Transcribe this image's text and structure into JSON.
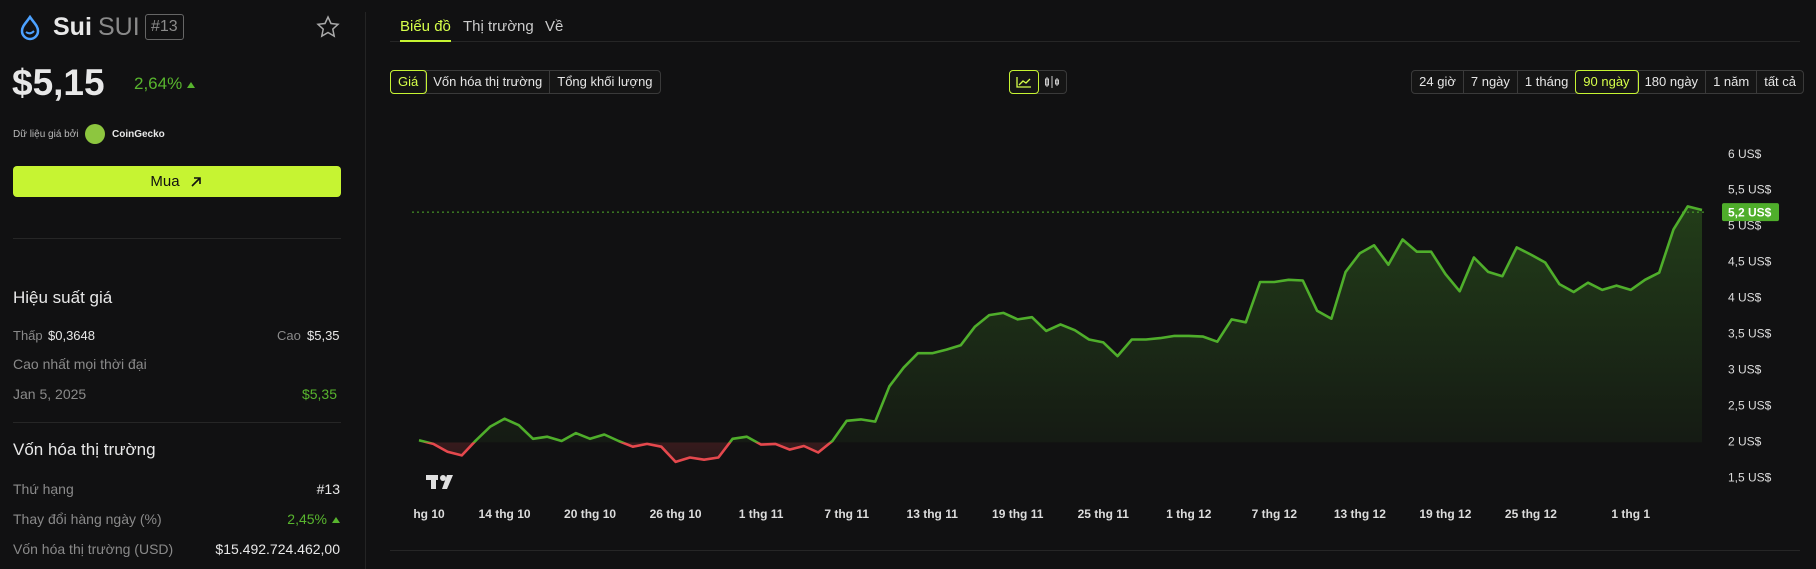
{
  "header": {
    "name": "Sui",
    "symbol": "SUI",
    "rank": "#13"
  },
  "price": {
    "value": "$5,15",
    "change": "2,64%"
  },
  "source": {
    "label": "Dữ liệu giá bởi",
    "provider": "CoinGecko"
  },
  "buy_button": "Mua",
  "performance": {
    "title": "Hiệu suất giá",
    "low_label": "Thấp",
    "low": "$0,3648",
    "high_label": "Cao",
    "high": "$5,35",
    "ath_label": "Cao nhất mọi thời đại",
    "ath_date": "Jan 5, 2025",
    "ath": "$5,35"
  },
  "market_cap": {
    "title": "Vốn hóa thị trường",
    "rows": [
      [
        "Thứ hạng",
        "#13"
      ],
      [
        "Thay đổi hàng ngày (%)",
        "2,45%"
      ],
      [
        "Vốn hóa thị trường (USD)",
        "$15.492.724.462,00"
      ]
    ]
  },
  "tabs": [
    "Biểu đồ",
    "Thị trường",
    "Về"
  ],
  "metrics": [
    "Giá",
    "Vốn hóa thị trường",
    "Tổng khối lượng"
  ],
  "ranges": [
    "24 giờ",
    "7 ngày",
    "1 tháng",
    "90 ngày",
    "180 ngày",
    "1 năm",
    "tất cả"
  ],
  "chart_data": {
    "type": "line",
    "color": "#4fae2b",
    "down_color": "#e5484d",
    "baseline": 2,
    "values": [
      2.03,
      1.98,
      1.87,
      1.82,
      2.03,
      2.22,
      2.33,
      2.24,
      2.05,
      2.08,
      2.02,
      2.13,
      2.05,
      2.11,
      2.02,
      1.94,
      1.98,
      1.94,
      1.73,
      1.79,
      1.76,
      1.79,
      2.05,
      2.08,
      1.97,
      1.98,
      1.9,
      1.95,
      1.86,
      2.02,
      2.3,
      2.32,
      2.29,
      2.78,
      3.04,
      3.24,
      3.24,
      3.29,
      3.35,
      3.61,
      3.77,
      3.8,
      3.71,
      3.74,
      3.55,
      3.64,
      3.56,
      3.43,
      3.39,
      3.2,
      3.43,
      3.43,
      3.45,
      3.48,
      3.48,
      3.47,
      3.4,
      3.71,
      3.67,
      4.23,
      4.23,
      4.26,
      4.25,
      3.83,
      3.72,
      4.37,
      4.63,
      4.74,
      4.47,
      4.82,
      4.65,
      4.65,
      4.34,
      4.1,
      4.57,
      4.37,
      4.31,
      4.71,
      4.61,
      4.5,
      4.2,
      4.09,
      4.22,
      4.12,
      4.18,
      4.12,
      4.26,
      4.36,
      4.96,
      5.28,
      5.23
    ],
    "xlim": [
      0,
      90
    ],
    "xticks": [
      {
        "value": 0,
        "label": "hg 10"
      },
      {
        "value": 6,
        "label": "14 thg 10"
      },
      {
        "value": 12,
        "label": "20 thg 10"
      },
      {
        "value": 18,
        "label": "26 thg 10"
      },
      {
        "value": 24,
        "label": "1 thg 11"
      },
      {
        "value": 30,
        "label": "7 thg 11"
      },
      {
        "value": 36,
        "label": "13 thg 11"
      },
      {
        "value": 42,
        "label": "19 thg 11"
      },
      {
        "value": 48,
        "label": "25 thg 11"
      },
      {
        "value": 54,
        "label": "1 thg 12"
      },
      {
        "value": 60,
        "label": "7 thg 12"
      },
      {
        "value": 66,
        "label": "13 thg 12"
      },
      {
        "value": 72,
        "label": "19 thg 12"
      },
      {
        "value": 78,
        "label": "25 thg 12"
      },
      {
        "value": 85,
        "label": "1 thg 1"
      }
    ],
    "ylim": [
      1.2,
      6.3
    ],
    "yticks": [
      {
        "value": 1.5,
        "label": "1,5 US$"
      },
      {
        "value": 2,
        "label": "2 US$"
      },
      {
        "value": 2.5,
        "label": "2,5 US$"
      },
      {
        "value": 3,
        "label": "3 US$"
      },
      {
        "value": 3.5,
        "label": "3,5 US$"
      },
      {
        "value": 4,
        "label": "4 US$"
      },
      {
        "value": 4.5,
        "label": "4,5 US$"
      },
      {
        "value": 5,
        "label": "5 US$"
      },
      {
        "value": 5.5,
        "label": "5,5 US$"
      },
      {
        "value": 6,
        "label": "6 US$"
      }
    ],
    "last_price": {
      "value": 5.2,
      "label": "5,2 US$"
    }
  }
}
